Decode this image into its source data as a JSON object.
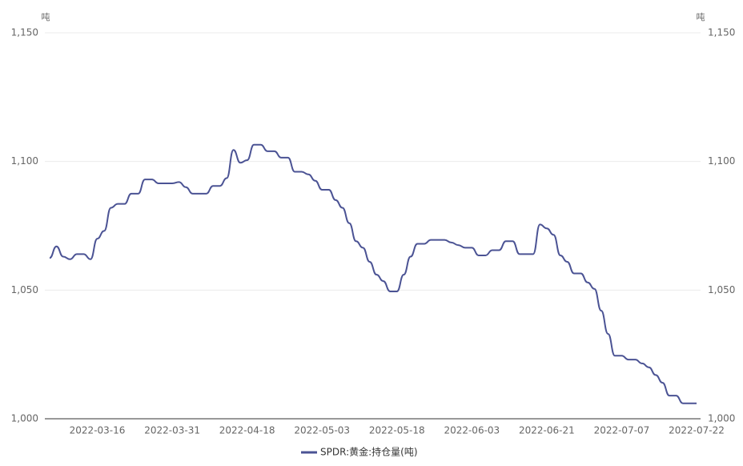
{
  "chart_data": {
    "type": "line",
    "y_unit": "吨",
    "y2_unit": "吨",
    "categories": [
      null,
      null,
      null,
      null,
      null,
      null,
      null,
      "2022-03-16",
      null,
      null,
      null,
      null,
      null,
      null,
      null,
      null,
      null,
      null,
      "2022-03-31",
      null,
      null,
      null,
      null,
      null,
      null,
      null,
      null,
      null,
      null,
      "2022-04-18",
      null,
      null,
      null,
      null,
      null,
      null,
      null,
      null,
      null,
      null,
      "2022-05-03",
      null,
      null,
      null,
      null,
      null,
      null,
      null,
      null,
      null,
      null,
      "2022-05-18",
      null,
      null,
      null,
      null,
      null,
      null,
      null,
      null,
      null,
      null,
      "2022-06-03",
      null,
      null,
      null,
      null,
      null,
      null,
      null,
      null,
      null,
      null,
      "2022-06-21",
      null,
      null,
      null,
      null,
      null,
      null,
      null,
      null,
      null,
      null,
      "2022-07-07",
      null,
      null,
      null,
      null,
      null,
      null,
      null,
      null,
      null,
      null,
      "2022-07-22"
    ],
    "series": [
      {
        "name": "SPDR:黄金:持仓量(吨)",
        "color": "#4b5394",
        "values": [
          1062.5,
          1067,
          1063,
          1062,
          1064,
          1064,
          1062,
          1070,
          1073,
          1082,
          1083.5,
          1083.5,
          1087.5,
          1087.5,
          1093,
          1093,
          1091.5,
          1091.5,
          1091.5,
          1092,
          1090,
          1087.5,
          1087.5,
          1087.5,
          1090.5,
          1090.5,
          1093.5,
          1104.5,
          1099.5,
          1100.5,
          1106.5,
          1106.5,
          1104,
          1104,
          1101.5,
          1101.5,
          1096,
          1096,
          1095,
          1092.5,
          1089,
          1089,
          1085,
          1082,
          1076,
          1069,
          1066.5,
          1061,
          1056,
          1053.5,
          1049.5,
          1049.5,
          1056,
          1063,
          1068,
          1068,
          1069.5,
          1069.5,
          1069.5,
          1068.5,
          1067.5,
          1066.5,
          1066.5,
          1063.5,
          1063.5,
          1065.5,
          1065.5,
          1069,
          1069,
          1064,
          1064,
          1064,
          1075.5,
          1074,
          1071.5,
          1063.5,
          1061,
          1056.5,
          1056.5,
          1053,
          1050.5,
          1042,
          1033,
          1024.5,
          1024.5,
          1023,
          1023,
          1021.5,
          1020,
          1017,
          1014,
          1009,
          1009,
          1006,
          1006,
          1006
        ]
      }
    ],
    "ylim": [
      1000,
      1150
    ],
    "yticks": [
      {
        "value": 1000,
        "label": "1,000"
      },
      {
        "value": 1050,
        "label": "1,050"
      },
      {
        "value": 1100,
        "label": "1,100"
      },
      {
        "value": 1150,
        "label": "1,150"
      }
    ],
    "y2lim": [
      1000,
      1150
    ],
    "y2ticks": [
      {
        "value": 1000,
        "label": "1,000"
      },
      {
        "value": 1050,
        "label": "1,050"
      },
      {
        "value": 1100,
        "label": "1,100"
      },
      {
        "value": 1150,
        "label": "1,150"
      }
    ],
    "grid": true,
    "legend": "bottom"
  }
}
